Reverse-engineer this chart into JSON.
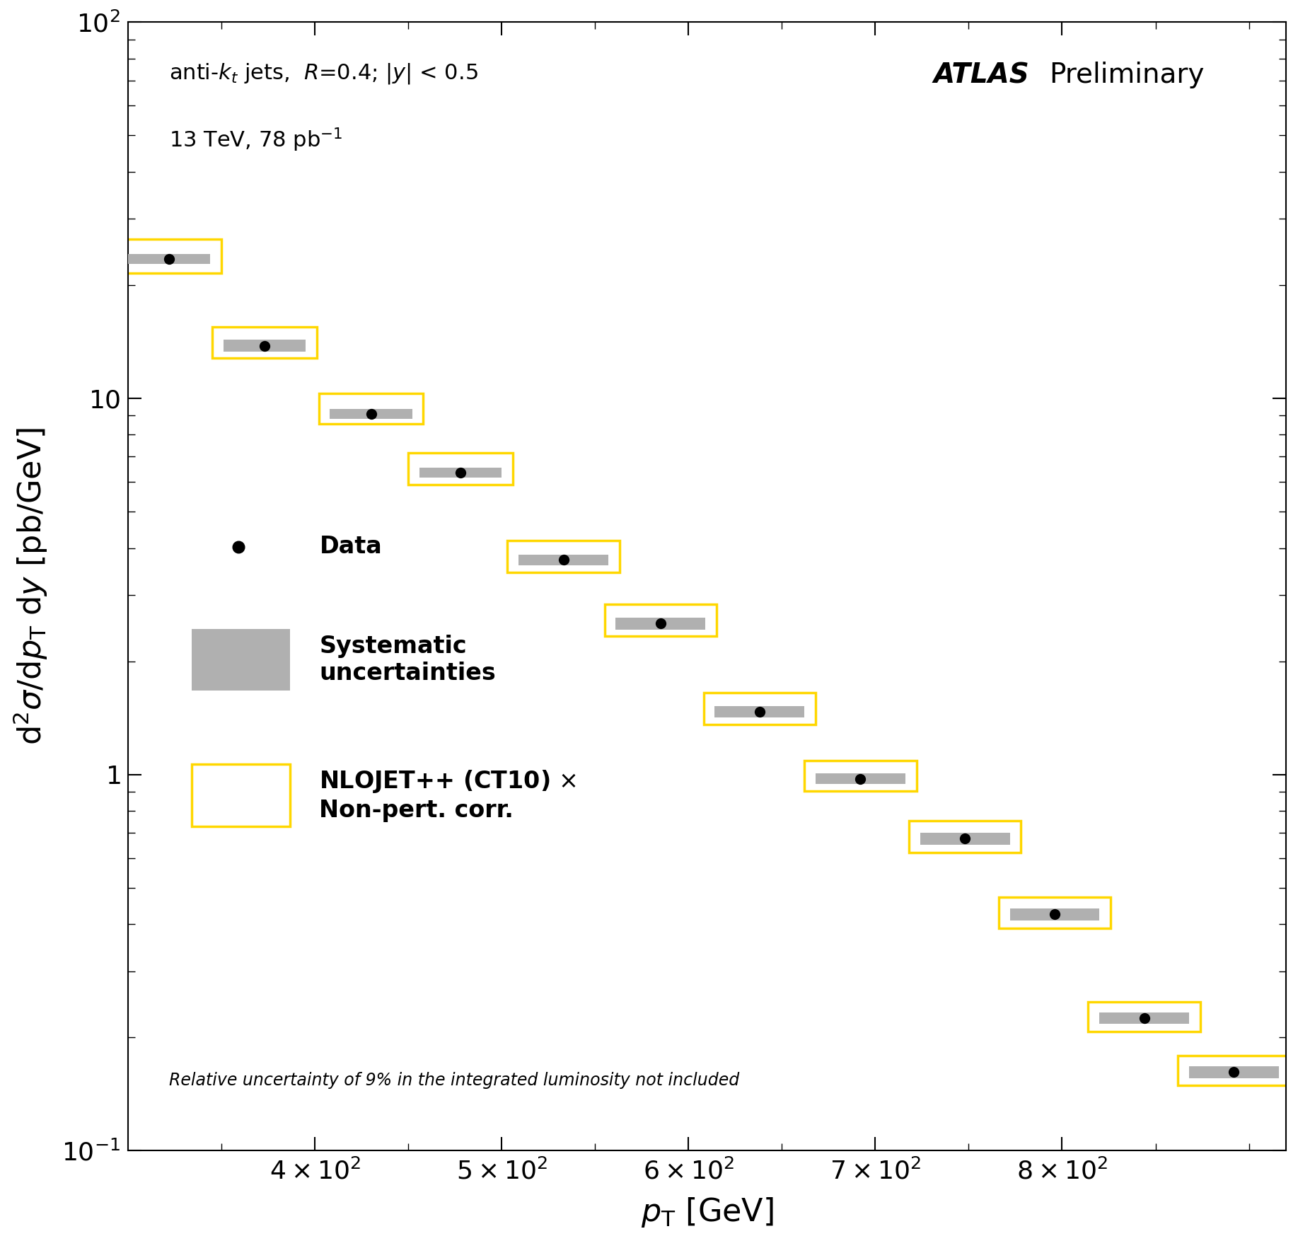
{
  "pt_centers": [
    322,
    373,
    430,
    478,
    533,
    585,
    638,
    692,
    748,
    796,
    844,
    892
  ],
  "data_values": [
    23.5,
    13.8,
    9.1,
    6.35,
    3.72,
    2.52,
    1.47,
    0.975,
    0.675,
    0.425,
    0.225,
    0.162
  ],
  "nlo_lo": [
    21.5,
    12.8,
    8.55,
    5.9,
    3.45,
    2.33,
    1.36,
    0.905,
    0.62,
    0.39,
    0.207,
    0.149
  ],
  "nlo_hi": [
    26.5,
    15.5,
    10.3,
    7.15,
    4.18,
    2.83,
    1.65,
    1.09,
    0.755,
    0.473,
    0.249,
    0.179
  ],
  "sys_lo": [
    22.8,
    13.3,
    8.82,
    6.15,
    3.6,
    2.43,
    1.42,
    0.943,
    0.651,
    0.41,
    0.217,
    0.156
  ],
  "sys_hi": [
    24.2,
    14.3,
    9.38,
    6.55,
    3.84,
    2.61,
    1.52,
    1.007,
    0.699,
    0.44,
    0.233,
    0.168
  ],
  "nlo_x_half": [
    28,
    28,
    28,
    28,
    30,
    30,
    30,
    30,
    30,
    30,
    30,
    30
  ],
  "sys_x_half": [
    22,
    22,
    22,
    22,
    24,
    24,
    24,
    24,
    24,
    24,
    24,
    24
  ],
  "xlabel": "$p_\\mathrm{T}$ [GeV]",
  "ylabel": "d$^2\\sigma$/d$p_\\mathrm{T}$ d$y$ [pb/GeV]",
  "xlim": [
    300,
    920
  ],
  "ylim": [
    0.1,
    100
  ],
  "text_line1": "anti-$k_t$ jets,  $R$=0.4; |$y$| < 0.5",
  "text_line2": "13 TeV, 78 pb$^{-1}$",
  "atlas_label": "ATLAS",
  "preliminary": "Preliminary",
  "legend_data": "Data",
  "legend_sys": "Systematic\nuncertainties",
  "legend_nlo": "NLOJET++ (CT10) $\\times$\nNon-pert. corr.",
  "footnote": "Relative uncertainty of 9% in the integrated luminosity not included",
  "data_color": "black",
  "sys_color": "#b0b0b0",
  "nlo_color": "#FFD700",
  "nlo_fill": "white"
}
